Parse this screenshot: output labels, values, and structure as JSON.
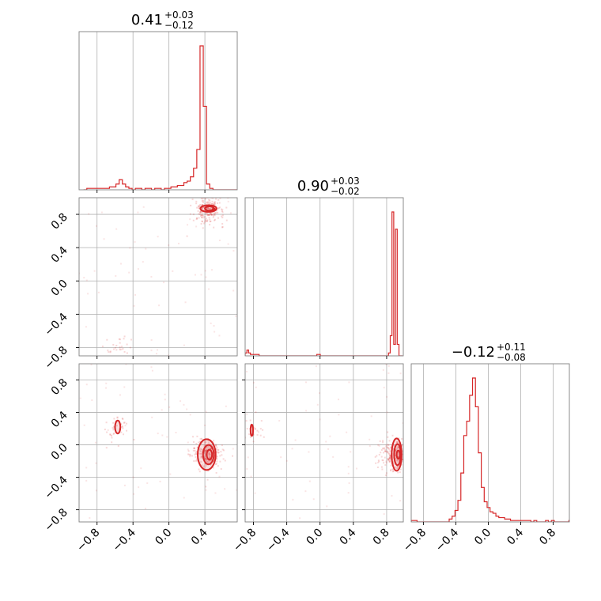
{
  "chart_data": {
    "type": "corner",
    "accent_color": "#d62728",
    "grid": true,
    "titles": [
      {
        "panel": "hist-0",
        "median": "0.41",
        "upper": "+0.03",
        "lower": "−0.12"
      },
      {
        "panel": "hist-1",
        "median": "0.90",
        "upper": "+0.03",
        "lower": "−0.02"
      },
      {
        "panel": "hist-2",
        "median": "−0.12",
        "upper": "+0.11",
        "lower": "−0.08"
      }
    ],
    "param_ranges": [
      [
        -1.0,
        0.76
      ],
      [
        -0.9,
        1.0
      ],
      [
        -0.95,
        1.0
      ]
    ],
    "ticks": {
      "p0": [
        "−0.8",
        "−0.4",
        "0.0",
        "0.4"
      ],
      "p1": [
        "−0.8",
        "−0.4",
        "0.0",
        "0.4",
        "0.8"
      ],
      "p2": [
        "−0.8",
        "−0.4",
        "0.0",
        "0.4",
        "0.8"
      ]
    },
    "hist_0": {
      "bin_edges_start": -0.95,
      "bin_width": 0.036,
      "counts": [
        0,
        1,
        1,
        1,
        1,
        1,
        1,
        1,
        2,
        2,
        4,
        7,
        4,
        2,
        1,
        0,
        1,
        1,
        0,
        1,
        1,
        0,
        1,
        1,
        0,
        1,
        1,
        2,
        2,
        3,
        3,
        5,
        6,
        9,
        15,
        28,
        100,
        58,
        4,
        1,
        0,
        0,
        0,
        0,
        0,
        0,
        0,
        0,
        0
      ]
    },
    "hist_1": {
      "bin_edges_start": -0.9,
      "bin_width": 0.021,
      "counts": [
        2,
        4,
        2,
        1,
        1,
        1,
        1,
        1,
        0,
        0,
        0,
        0,
        0,
        0,
        0,
        0,
        0,
        0,
        0,
        0,
        0,
        0,
        0,
        0,
        0,
        0,
        0,
        0,
        0,
        0,
        0,
        0,
        0,
        0,
        0,
        0,
        0,
        0,
        0,
        0,
        0,
        1,
        1,
        0,
        0,
        0,
        0,
        0,
        0,
        0,
        0,
        0,
        0,
        0,
        0,
        0,
        0,
        0,
        0,
        0,
        0,
        0,
        0,
        0,
        0,
        0,
        0,
        0,
        0,
        0,
        0,
        0,
        0,
        0,
        0,
        0,
        0,
        0,
        0,
        0,
        0,
        0,
        2,
        14,
        100,
        8,
        88,
        8,
        0,
        0
      ]
    },
    "hist_2": {
      "bin_edges_start": -0.95,
      "bin_width": 0.036,
      "counts": [
        1,
        1,
        0,
        0,
        0,
        0,
        0,
        0,
        0,
        0,
        0,
        0,
        0,
        2,
        4,
        8,
        15,
        34,
        60,
        70,
        88,
        100,
        80,
        48,
        24,
        14,
        10,
        7,
        6,
        4,
        3,
        3,
        2,
        2,
        1,
        1,
        1,
        1,
        1,
        1,
        1,
        0,
        1,
        0,
        0,
        0,
        1,
        0,
        1,
        0,
        0,
        0,
        0,
        0,
        1
      ]
    },
    "scatter_1_0": {
      "modes": [
        {
          "x": 0.44,
          "y": 0.87,
          "weight": 0.88
        },
        {
          "x": -0.58,
          "y": -0.82,
          "weight": 0.12
        }
      ],
      "contours": [
        {
          "cx": 0.44,
          "cy": 0.87,
          "rx": 0.09,
          "ry": 0.04
        },
        {
          "cx": 0.45,
          "cy": 0.87,
          "rx": 0.05,
          "ry": 0.025
        },
        {
          "cx": 0.5,
          "cy": 0.86,
          "rx": 0.015,
          "ry": 0.01
        }
      ]
    },
    "scatter_2_0": {
      "modes": [
        {
          "x": 0.43,
          "y": -0.12,
          "weight": 0.85
        },
        {
          "x": -0.58,
          "y": 0.22,
          "weight": 0.15
        }
      ],
      "contours": [
        {
          "cx": 0.42,
          "cy": -0.12,
          "rx": 0.1,
          "ry": 0.19
        },
        {
          "cx": 0.44,
          "cy": -0.12,
          "rx": 0.06,
          "ry": 0.12
        },
        {
          "cx": 0.45,
          "cy": -0.12,
          "rx": 0.03,
          "ry": 0.06
        },
        {
          "cx": -0.57,
          "cy": 0.22,
          "rx": 0.03,
          "ry": 0.08
        }
      ]
    },
    "scatter_2_1": {
      "modes": [
        {
          "x": 0.9,
          "y": -0.12,
          "weight": 0.88
        },
        {
          "x": -0.82,
          "y": 0.15,
          "weight": 0.12
        }
      ],
      "contours": [
        {
          "cx": 0.92,
          "cy": -0.12,
          "rx": 0.06,
          "ry": 0.2
        },
        {
          "cx": 0.93,
          "cy": -0.12,
          "rx": 0.04,
          "ry": 0.13
        },
        {
          "cx": 0.94,
          "cy": -0.12,
          "rx": 0.02,
          "ry": 0.05
        },
        {
          "cx": -0.82,
          "cy": 0.18,
          "rx": 0.015,
          "ry": 0.07
        }
      ]
    }
  }
}
